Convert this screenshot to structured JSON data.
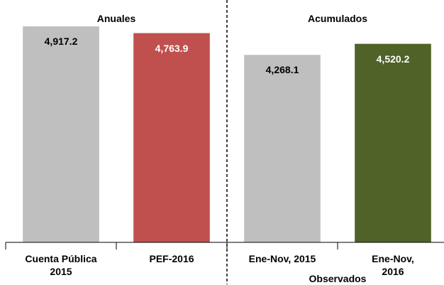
{
  "chart_data": {
    "type": "bar",
    "categories": [
      "Cuenta Pública\n2015",
      "PEF-2016",
      "Ene-Nov, 2015",
      "Ene-Nov, 2016"
    ],
    "values": [
      4917.2,
      4763.9,
      4268.1,
      4520.2
    ],
    "value_labels": [
      "4,917.2",
      "4,763.9",
      "4,268.1",
      "4,520.2"
    ],
    "colors": [
      "#bfbfbf",
      "#c0504d",
      "#bfbfbf",
      "#4f6228"
    ],
    "label_colors": [
      "#000000",
      "#ffffff",
      "#000000",
      "#ffffff"
    ],
    "groups": [
      {
        "label": "Anuales",
        "position": "top"
      },
      {
        "label": "Acumulados",
        "position": "top"
      },
      {
        "label": "Observados",
        "position": "bottom"
      }
    ],
    "ylim": [
      0,
      5000
    ]
  }
}
